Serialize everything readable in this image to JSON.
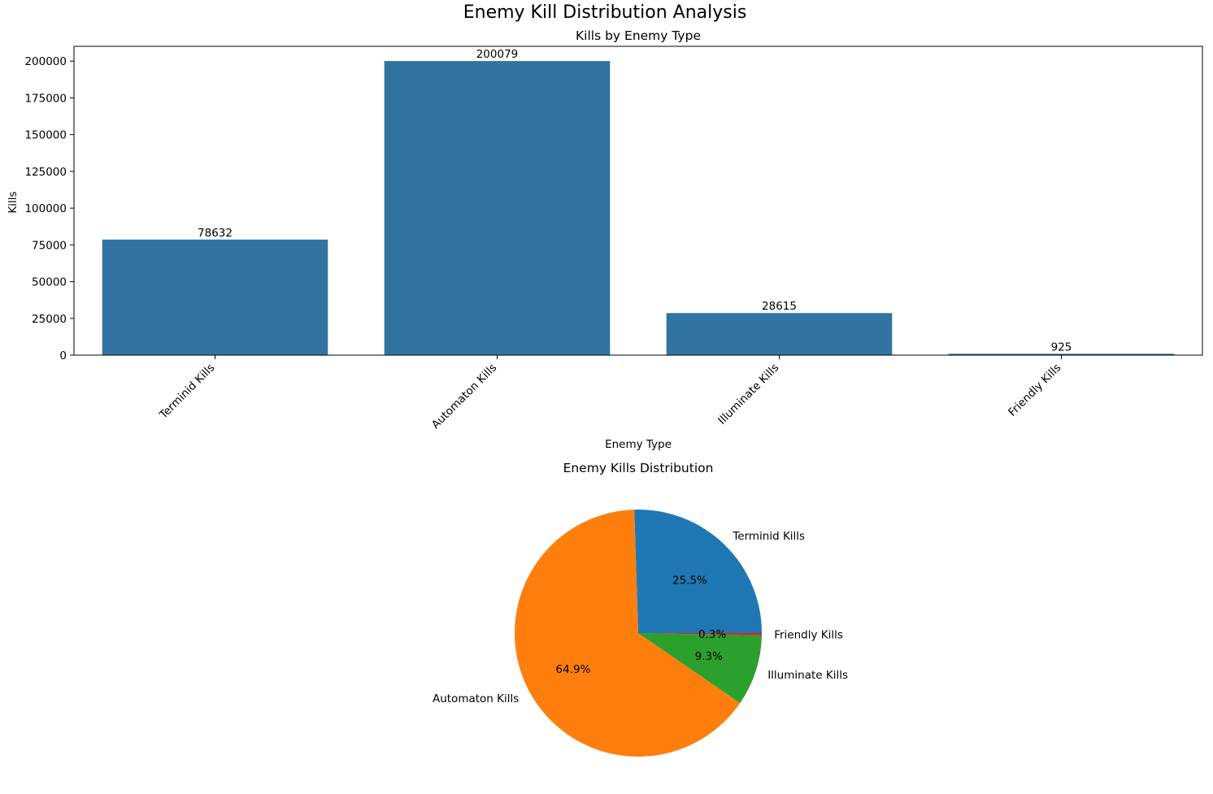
{
  "figure": {
    "title": "Enemy Kill Distribution Analysis"
  },
  "chart_data": [
    {
      "type": "bar",
      "title": "Kills by Enemy Type",
      "xlabel": "Enemy Type",
      "ylabel": "Kills",
      "categories": [
        "Terminid Kills",
        "Automaton Kills",
        "Illuminate Kills",
        "Friendly Kills"
      ],
      "values": [
        78632,
        200079,
        28615,
        925
      ],
      "value_labels": [
        "78632",
        "200079",
        "28615",
        "925"
      ],
      "ylim": [
        0,
        210083
      ],
      "yticks": [
        0,
        25000,
        50000,
        75000,
        100000,
        125000,
        150000,
        175000,
        200000
      ],
      "color": "#3274a1",
      "grid": false,
      "legend": "none"
    },
    {
      "type": "pie",
      "title": "Enemy Kills Distribution",
      "labels": [
        "Terminid Kills",
        "Automaton Kills",
        "Illuminate Kills",
        "Friendly Kills"
      ],
      "values": [
        78632,
        200079,
        28615,
        925
      ],
      "percent_labels": [
        "25.5%",
        "64.9%",
        "9.3%",
        "0.3%"
      ],
      "colors": [
        "#1f77b4",
        "#ff7f0e",
        "#2ca02c",
        "#d62728"
      ],
      "start_angle": 0
    }
  ]
}
